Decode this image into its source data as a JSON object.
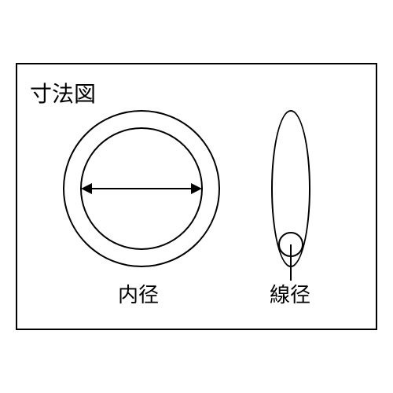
{
  "diagram": {
    "type": "infographic",
    "title": "寸法図",
    "title_fontsize": 28,
    "background_color": "#ffffff",
    "border_color": "#000000",
    "border_width": 2,
    "stroke_color": "#000000",
    "text_color": "#000000",
    "ring_view": {
      "outer_diameter": 200,
      "inner_diameter": 156,
      "label": "内径",
      "label_fontsize": 26,
      "arrow_style": "double-headed"
    },
    "side_view": {
      "ellipse_width": 50,
      "ellipse_height": 200,
      "cross_section_diameter": 32,
      "label": "線径",
      "label_fontsize": 26
    }
  }
}
